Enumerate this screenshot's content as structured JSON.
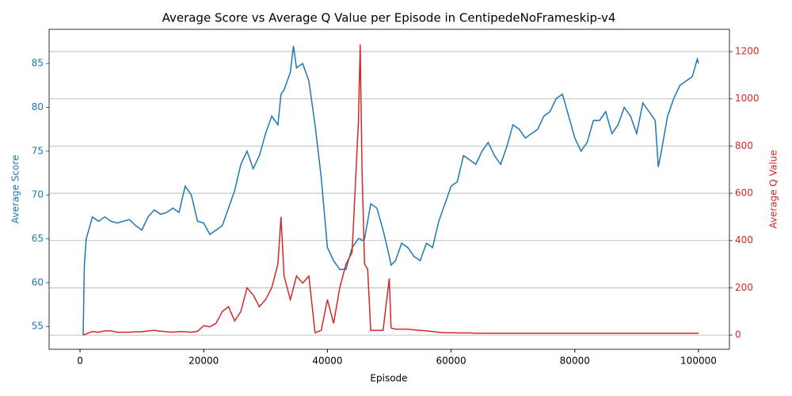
{
  "chart_data": {
    "type": "line",
    "title": "Average Score vs Average Q Value per Episode in CentipedeNoFrameskip-v4",
    "x_label": "Episode",
    "y_label": "Average Score",
    "y2_label": "Average Q Value",
    "xlim": [
      -5000,
      105000
    ],
    "xticks": [
      0,
      20000,
      40000,
      60000,
      80000,
      100000
    ],
    "ylim": [
      52.4,
      88.9
    ],
    "yticks": [
      55,
      60,
      65,
      70,
      75,
      80,
      85
    ],
    "y2lim": [
      -60,
      1294
    ],
    "y2ticks": [
      0,
      200,
      400,
      600,
      800,
      1000,
      1200
    ],
    "grid": "y2",
    "x": [
      500,
      700,
      1000,
      2000,
      3000,
      4000,
      5000,
      6000,
      7000,
      8000,
      9000,
      10000,
      11000,
      12000,
      13000,
      14000,
      15000,
      16000,
      17000,
      18000,
      19000,
      20000,
      21000,
      22000,
      23000,
      24000,
      25000,
      26000,
      27000,
      28000,
      29000,
      30000,
      31000,
      32000,
      32500,
      33000,
      34000,
      34500,
      35000,
      36000,
      37000,
      38000,
      39000,
      40000,
      41000,
      42000,
      43000,
      44000,
      45000,
      45300,
      45600,
      46000,
      46500,
      47000,
      48000,
      49000,
      50000,
      50300,
      51000,
      52000,
      53000,
      54000,
      55000,
      56000,
      57000,
      58000,
      59000,
      60000,
      61000,
      62000,
      63000,
      64000,
      65000,
      66000,
      67000,
      68000,
      69000,
      70000,
      71000,
      72000,
      73000,
      74000,
      75000,
      76000,
      77000,
      78000,
      79000,
      80000,
      81000,
      82000,
      83000,
      84000,
      85000,
      86000,
      87000,
      88000,
      89000,
      90000,
      91000,
      92000,
      93000,
      93500,
      94000,
      95000,
      96000,
      97000,
      98000,
      99000,
      99800,
      100000
    ],
    "series": [
      {
        "name": "Average Score",
        "color": "#1f77b4",
        "values": [
          54,
          62,
          65,
          67.5,
          67,
          67.5,
          67,
          66.8,
          67,
          67.2,
          66.5,
          66,
          67.5,
          68.3,
          67.8,
          68,
          68.5,
          68,
          71,
          70,
          67,
          66.8,
          65.5,
          66,
          66.5,
          68.5,
          70.5,
          73.5,
          75,
          73,
          74.5,
          77,
          79,
          78,
          81.5,
          82,
          84,
          87,
          84.5,
          85,
          83,
          78,
          72,
          64,
          62.5,
          61.5,
          61.5,
          64,
          65,
          65,
          64.8,
          65,
          67,
          69,
          68.5,
          66,
          63,
          62,
          62.5,
          64.5,
          64,
          63,
          62.5,
          64.5,
          64,
          67,
          69,
          71,
          71.5,
          74.5,
          74,
          73.5,
          75,
          76,
          74.5,
          73.5,
          75.5,
          78,
          77.5,
          76.5,
          77,
          77.5,
          79,
          79.5,
          81,
          81.5,
          79,
          76.5,
          75,
          76,
          78.5,
          78.5,
          79.5,
          77,
          78,
          80,
          79,
          77,
          80.5,
          79.5,
          78.5,
          73.2,
          75,
          79,
          81,
          82.5,
          83,
          83.5,
          85.5,
          85
        ]
      },
      {
        "name": "Average Q Value",
        "color": "#d62728",
        "axis": "y2",
        "values": [
          0,
          2,
          5,
          15,
          12,
          18,
          18,
          12,
          12,
          12,
          14,
          14,
          18,
          20,
          16,
          14,
          12,
          15,
          14,
          12,
          16,
          40,
          35,
          50,
          100,
          120,
          60,
          100,
          200,
          170,
          120,
          150,
          200,
          300,
          500,
          250,
          150,
          200,
          250,
          220,
          250,
          10,
          20,
          150,
          50,
          200,
          300,
          350,
          900,
          1230,
          700,
          300,
          280,
          20,
          20,
          20,
          240,
          30,
          25,
          25,
          25,
          22,
          20,
          18,
          15,
          12,
          10,
          10,
          9,
          9,
          9,
          8,
          8,
          8,
          8,
          8,
          8,
          8,
          8,
          8,
          8,
          8,
          8,
          8,
          8,
          8,
          8,
          8,
          8,
          8,
          8,
          8,
          8,
          8,
          8,
          8,
          8,
          8,
          8,
          8,
          8,
          8,
          8,
          8,
          8,
          8,
          8,
          8,
          8,
          8
        ]
      }
    ]
  }
}
